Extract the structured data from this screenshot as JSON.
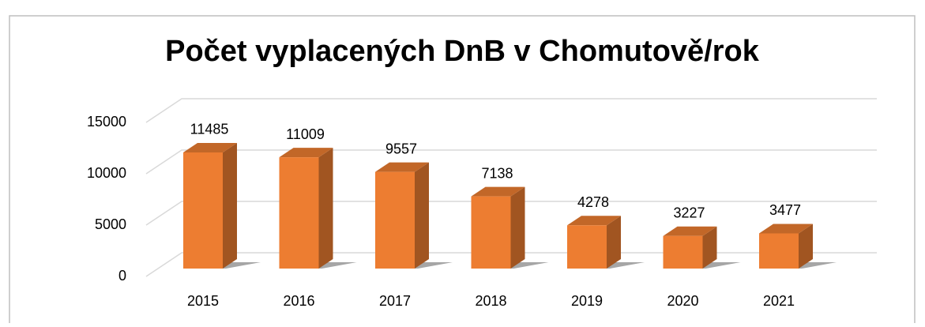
{
  "chart_data": {
    "type": "bar",
    "title": "Počet vyplacených DnB v Chomutově/rok",
    "categories": [
      "2015",
      "2016",
      "2017",
      "2018",
      "2019",
      "2020",
      "2021"
    ],
    "values": [
      11485,
      11009,
      9557,
      7138,
      4278,
      3227,
      3477
    ],
    "color": "#ed7d31",
    "ylim": [
      0,
      15000
    ],
    "yticks": [
      0,
      5000,
      10000,
      15000
    ],
    "grid": true
  }
}
